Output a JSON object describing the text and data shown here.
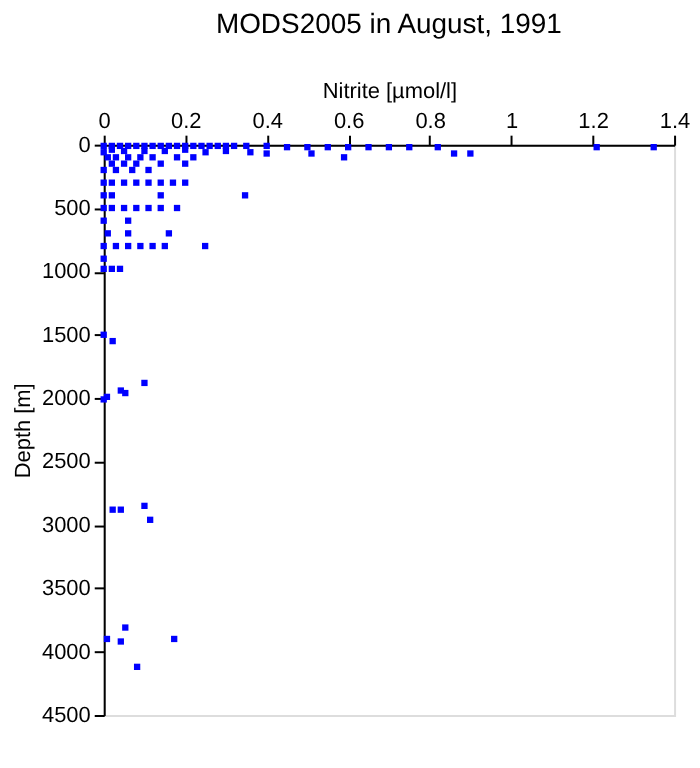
{
  "chart_data": {
    "type": "scatter",
    "title": "MODS2005 in August, 1991",
    "xlabel": "Nitrite [µmol/l]",
    "ylabel": "Depth [m]",
    "xlim": [
      0,
      1.4
    ],
    "xticks": [
      0,
      0.2,
      0.4,
      0.6,
      0.8,
      1,
      1.2,
      1.4
    ],
    "ylim": [
      4500,
      0
    ],
    "yticks": [
      0,
      500,
      1000,
      1500,
      2000,
      2500,
      3000,
      3500,
      4000,
      4500
    ],
    "grid": false,
    "marker": "square",
    "series": [
      {
        "color": "#0000ff",
        "x": [
          0,
          0.02,
          0.04,
          0.06,
          0.08,
          0.1,
          0.12,
          0.14,
          0.16,
          0.18,
          0.2,
          0.22,
          0.24,
          0.26,
          0.28,
          0.3,
          0.32,
          0.35,
          0.4,
          0.45,
          0.5,
          0.55,
          0.6,
          0.65,
          0.7,
          0.75,
          0.82,
          1.21,
          1.35,
          0.86,
          0.9,
          0.4,
          0.51,
          0.59,
          0.36,
          0.3,
          0.25,
          0.2,
          0.15,
          0.1,
          0.05,
          0.02,
          0,
          0.01,
          0.03,
          0.06,
          0.09,
          0.12,
          0.18,
          0.22,
          0.02,
          0.05,
          0.08,
          0.14,
          0.2,
          0,
          0.03,
          0.07,
          0.11,
          0,
          0.02,
          0.05,
          0.08,
          0.11,
          0.14,
          0.17,
          0.2,
          0,
          0.02,
          0.14,
          0.347,
          0,
          0.02,
          0.05,
          0.08,
          0.11,
          0.14,
          0.18,
          0,
          0.06,
          0.01,
          0.06,
          0.16,
          0,
          0.03,
          0.06,
          0.09,
          0.12,
          0.15,
          0.249,
          0,
          0,
          0.02,
          0.04,
          0,
          0.022,
          0.1,
          0.008,
          0,
          0.042,
          0.053,
          0.022,
          0.042,
          0.1,
          0.114,
          0.053,
          0.008,
          0.042,
          0.173,
          0.082
        ],
        "values": [
          10,
          10,
          10,
          10,
          10,
          10,
          10,
          10,
          10,
          10,
          10,
          10,
          10,
          10,
          10,
          10,
          10,
          10,
          10,
          20,
          20,
          20,
          20,
          20,
          20,
          20,
          20,
          20,
          20,
          70,
          70,
          70,
          70,
          100,
          60,
          50,
          60,
          40,
          50,
          50,
          50,
          40,
          60,
          100,
          100,
          100,
          100,
          100,
          100,
          100,
          150,
          150,
          150,
          150,
          150,
          200,
          200,
          200,
          200,
          300,
          300,
          300,
          300,
          300,
          300,
          300,
          300,
          400,
          400,
          400,
          400,
          500,
          500,
          500,
          500,
          500,
          500,
          500,
          600,
          600,
          700,
          700,
          700,
          800,
          800,
          800,
          800,
          800,
          800,
          800,
          900,
          980,
          980,
          980,
          1500,
          1550,
          1880,
          1990,
          2010,
          1940,
          1960,
          2880,
          2880,
          2850,
          2960,
          3810,
          3900,
          3920,
          3900,
          4120
        ]
      }
    ]
  }
}
